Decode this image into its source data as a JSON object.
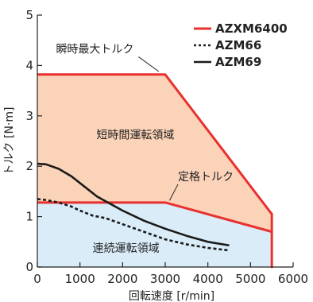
{
  "chart_data": {
    "type": "line",
    "title": "",
    "xlabel": "回転速度 [r/min]",
    "ylabel": "トルク [N·m]",
    "xlim": [
      0,
      6000
    ],
    "ylim": [
      0,
      5
    ],
    "xticks": [
      0,
      1000,
      2000,
      3000,
      4000,
      5000,
      6000
    ],
    "yticks": [
      0,
      1,
      2,
      3,
      4,
      5
    ],
    "grid": false,
    "legend": "top-right",
    "regions": [
      {
        "label": "短時間運転領域",
        "color": "#fbd3b8",
        "points": [
          [
            0,
            3.82
          ],
          [
            3000,
            3.82
          ],
          [
            5500,
            1.05
          ],
          [
            5500,
            0
          ],
          [
            0,
            0
          ]
        ]
      },
      {
        "label": "連続運転領域",
        "color": "#d9ecf8",
        "points": [
          [
            0,
            1.28
          ],
          [
            3000,
            1.28
          ],
          [
            5500,
            0.7
          ],
          [
            5500,
            0
          ],
          [
            0,
            0
          ]
        ]
      }
    ],
    "series": [
      {
        "name": "AZXM6400",
        "color": "#e8312f",
        "dash": "solid",
        "x": [
          0,
          3000,
          5500,
          5500,
          5500,
          3000,
          0
        ],
        "y": [
          3.82,
          3.82,
          1.05,
          0,
          0.7,
          1.28,
          1.28
        ]
      },
      {
        "name": "AZM66",
        "color": "#1a1a1a",
        "dash": "dotted",
        "x": [
          0,
          200,
          500,
          800,
          1000,
          1300,
          1600,
          2000,
          2500,
          3000,
          3500,
          4000,
          4500
        ],
        "y": [
          1.35,
          1.33,
          1.28,
          1.2,
          1.12,
          1.02,
          0.97,
          0.85,
          0.7,
          0.55,
          0.45,
          0.38,
          0.33
        ]
      },
      {
        "name": "AZM69",
        "color": "#1a1a1a",
        "dash": "solid",
        "x": [
          0,
          200,
          500,
          800,
          1100,
          1400,
          1700,
          2000,
          2500,
          3000,
          3500,
          4000,
          4500
        ],
        "y": [
          2.05,
          2.04,
          1.95,
          1.8,
          1.6,
          1.4,
          1.26,
          1.12,
          0.92,
          0.76,
          0.62,
          0.5,
          0.43
        ]
      }
    ],
    "annotations": [
      {
        "text": "瞬時最大トルク",
        "x": 1350,
        "y": 4.25,
        "arrow_to": [
          2850,
          3.88
        ]
      },
      {
        "text": "定格トルク",
        "x": 3950,
        "y": 1.72,
        "arrow_to": [
          3100,
          1.32
        ]
      },
      {
        "text": "短時間運転領域",
        "x": 2300,
        "y": 2.55
      },
      {
        "text": "連続運転領域",
        "x": 2080,
        "y": 0.3
      }
    ]
  }
}
